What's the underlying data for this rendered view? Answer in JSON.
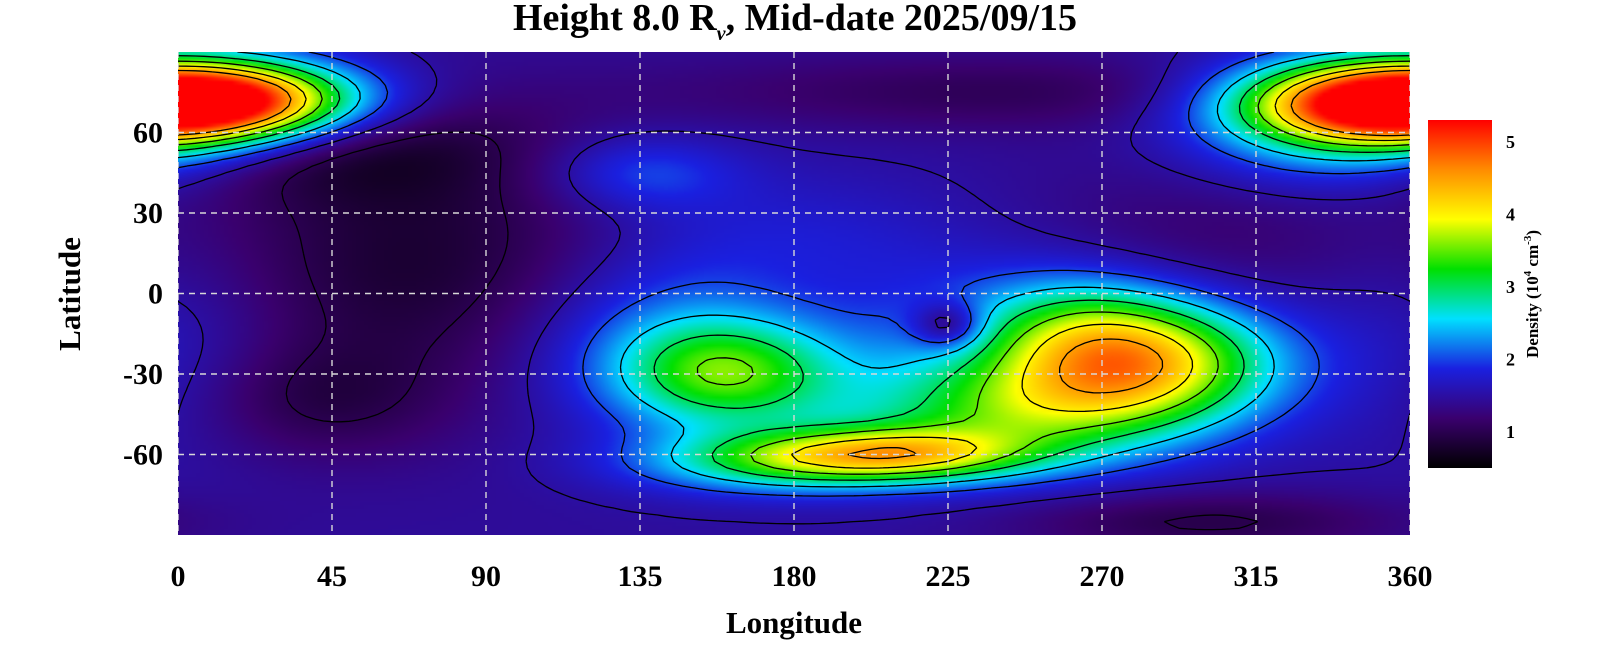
{
  "chart_data": {
    "type": "heatmap",
    "title": {
      "prefix": "Height 8.0 R",
      "subscript": "v",
      "suffix": ", Mid-date 2025/09/15"
    },
    "xlabel": "Longitude",
    "ylabel": "Latitude",
    "xlim": [
      0,
      360
    ],
    "ylim": [
      -90,
      90
    ],
    "xticks": [
      0,
      45,
      90,
      135,
      180,
      225,
      270,
      315,
      360
    ],
    "yticks": [
      60,
      30,
      0,
      -30,
      -60
    ],
    "yticks_labels": [
      "60",
      "30",
      "0",
      "-30",
      "-60"
    ],
    "grid": true,
    "colorbar": {
      "label_prefix": "Density (10",
      "label_exp1": "4",
      "label_mid": " cm",
      "label_exp2": "-3",
      "label_suffix": ")",
      "range": [
        0.5,
        5.3
      ],
      "ticks": [
        1,
        2,
        3,
        4,
        5
      ],
      "ticks_labels": [
        "1",
        "2",
        "3",
        "4",
        "5"
      ],
      "colormap": [
        "#000000",
        "#3a006e",
        "#1a20e0",
        "#00e0ff",
        "#00e000",
        "#ffff00",
        "#ff8c00",
        "#ff0000"
      ]
    },
    "contour_levels": [
      1.0,
      1.5,
      2.0,
      2.5,
      3.0,
      3.5,
      4.0,
      4.5
    ],
    "background_density": 1.45,
    "features": [
      {
        "lon": 160,
        "lat": -30,
        "amp": 1.5,
        "slon": 22,
        "slat": 14
      },
      {
        "lon": 140,
        "lat": -20,
        "amp": 0.6,
        "slon": 30,
        "slat": 22
      },
      {
        "lon": 172,
        "lat": 10,
        "amp": 0.4,
        "slon": 35,
        "slat": 22
      },
      {
        "lon": 210,
        "lat": -60,
        "amp": 1.9,
        "slon": 28,
        "slat": 7
      },
      {
        "lon": 175,
        "lat": -63,
        "amp": 1.2,
        "slon": 30,
        "slat": 8
      },
      {
        "lon": 245,
        "lat": -45,
        "amp": 1.4,
        "slon": 35,
        "slat": 14
      },
      {
        "lon": 280,
        "lat": -25,
        "amp": 2.6,
        "slon": 28,
        "slat": 16
      },
      {
        "lon": 262,
        "lat": -10,
        "amp": 0.7,
        "slon": 22,
        "slat": 14
      },
      {
        "lon": 220,
        "lat": -20,
        "amp": 0.4,
        "slon": 50,
        "slat": 30
      },
      {
        "lon": 8,
        "lat": 72,
        "amp": 3.0,
        "slon": 30,
        "slat": 10
      },
      {
        "lon": 352,
        "lat": 70,
        "amp": 3.0,
        "slon": 32,
        "slat": 12
      },
      {
        "lon": 335,
        "lat": 50,
        "amp": 0.5,
        "slon": 30,
        "slat": 12
      },
      {
        "lon": 135,
        "lat": 45,
        "amp": 0.6,
        "slon": 20,
        "slat": 10
      },
      {
        "lon": 0,
        "lat": -15,
        "amp": 0.3,
        "slon": 25,
        "slat": 30
      },
      {
        "lon": 70,
        "lat": 10,
        "amp": -0.65,
        "slon": 45,
        "slat": 35
      },
      {
        "lon": 45,
        "lat": 55,
        "amp": -0.55,
        "slon": 40,
        "slat": 14
      },
      {
        "lon": 40,
        "lat": -40,
        "amp": -0.4,
        "slon": 25,
        "slat": 15
      },
      {
        "lon": 300,
        "lat": 20,
        "amp": -0.3,
        "slon": 40,
        "slat": 25
      },
      {
        "lon": 240,
        "lat": 75,
        "amp": -0.4,
        "slon": 70,
        "slat": 10
      },
      {
        "lon": 300,
        "lat": -85,
        "amp": -0.5,
        "slon": 40,
        "slat": 8
      },
      {
        "lon": 225,
        "lat": -12,
        "amp": -0.9,
        "slon": 7,
        "slat": 6
      },
      {
        "lon": 180,
        "lat": 0,
        "amp": -0.3,
        "slon": 25,
        "slat": 15
      }
    ]
  }
}
